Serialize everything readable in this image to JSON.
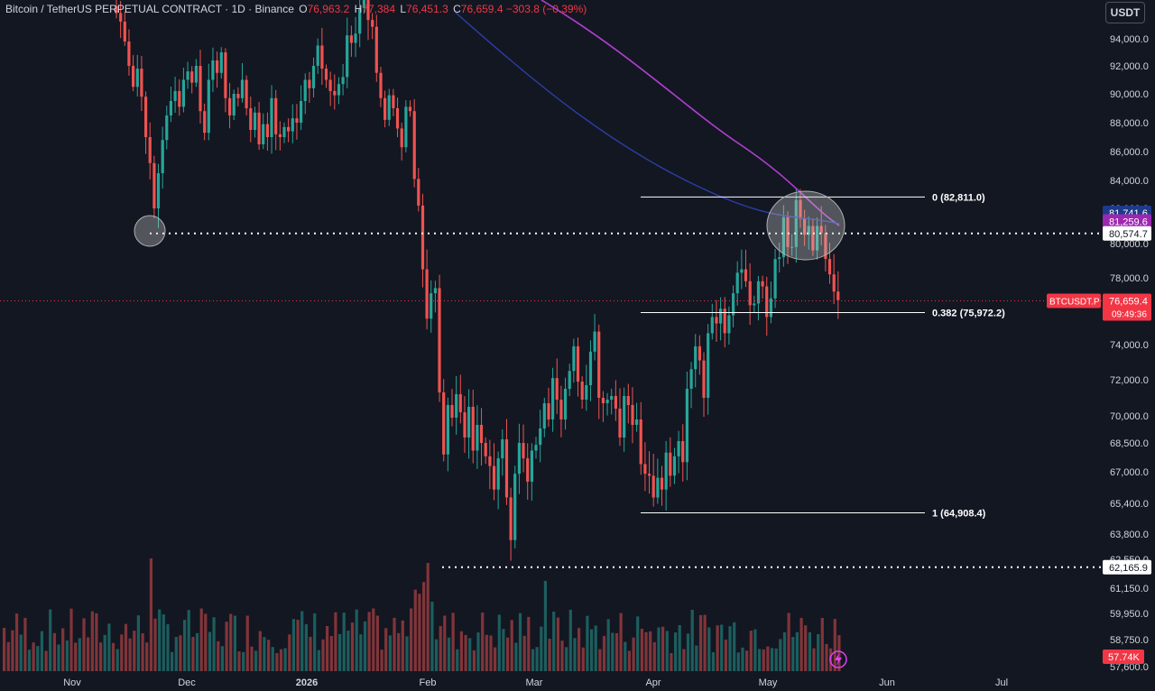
{
  "legend": {
    "symbol": "Bitcoin / TetherUS PERPETUAL CONTRACT · 1D · Binance",
    "o_label": "O",
    "o_value": "76,963.2",
    "h_label": "H",
    "h_value": "77,384",
    "l_label": "L",
    "l_value": "76,451.3",
    "c_label": "C",
    "c_value": "76,659.4",
    "change": "−303.8 (−0.39%)"
  },
  "currency_button": "USDT",
  "colors": {
    "background": "#131722",
    "up": "#26a69a",
    "down": "#ef5350",
    "ma_magenta": "#b03fd0",
    "ma_blue": "#2c3ea8",
    "last_price": "#f23645"
  },
  "chart_data": {
    "type": "candlestick",
    "x_ticks": [
      "Nov",
      "Dec",
      "2026",
      "Feb",
      "Mar",
      "Apr",
      "May",
      "Jun",
      "Jul"
    ],
    "y_ticks": [
      "94,000.0",
      "92,000.0",
      "90,000.0",
      "88,000.0",
      "86,000.0",
      "84,000.0",
      "82,000.0",
      "80,000.0",
      "78,000.0",
      "74,000.0",
      "72,000.0",
      "70,000.0",
      "68,500.0",
      "67,000.0",
      "65,400.0",
      "63,800.0",
      "62,550.0",
      "61,150.0",
      "59,950.0",
      "58,750.0",
      "57,600.0"
    ],
    "price_tags": [
      {
        "label": "81,741.6",
        "value": 81741.6,
        "color": "#1e3a8a"
      },
      {
        "label": "81,259.6",
        "value": 81259.6,
        "color": "#9c27b0"
      },
      {
        "label": "80,574.7",
        "value": 80574.7,
        "color": "#ffffff"
      },
      {
        "label": "62,165.9",
        "value": 62165.9,
        "color": "#ffffff"
      }
    ],
    "last_price": {
      "symbol": "BTCUSDT.P",
      "price": "76,659.4",
      "countdown": "09:49:36",
      "value": 76659.4
    },
    "volume_tag": "57.74K",
    "fib_levels": [
      {
        "label": "0 (82,811.0)",
        "value": 82811.0
      },
      {
        "label": "0.382 (75,972.2)",
        "value": 75972.2
      },
      {
        "label": "1 (64,908.4)",
        "value": 64908.4
      }
    ],
    "horizontal_lines": [
      80574.7,
      62165.9
    ],
    "closes": [
      95500,
      95000,
      93800,
      92000,
      90500,
      91800,
      89800,
      87000,
      85200,
      82000,
      84500,
      86800,
      88500,
      89500,
      90200,
      89100,
      91000,
      91600,
      90800,
      92000,
      88800,
      87300,
      91000,
      92400,
      91500,
      93000,
      89700,
      88500,
      90000,
      89700,
      91000,
      89000,
      87500,
      88700,
      86500,
      87900,
      87000,
      89700,
      87200,
      87000,
      87700,
      87400,
      88300,
      88000,
      89500,
      91000,
      90400,
      92000,
      93500,
      91800,
      91000,
      90200,
      89900,
      90700,
      91200,
      94200,
      93700,
      94300,
      95800,
      96900,
      95100,
      94700,
      91500,
      89700,
      88200,
      89900,
      89000,
      87600,
      86300,
      89100,
      88800,
      84100,
      82200,
      78500,
      75600,
      77100,
      77400,
      71300,
      67900,
      70600,
      69900,
      71200,
      70200,
      68800,
      70500,
      68100,
      69500,
      68500,
      67800,
      67300,
      66100,
      67700,
      68700,
      65700,
      63500,
      66900,
      68500,
      67700,
      66500,
      68100,
      68400,
      69300,
      70700,
      69800,
      72100,
      70900,
      69800,
      71500,
      72500,
      73900,
      71900,
      70900,
      71700,
      73600,
      74800,
      71000,
      70700,
      70900,
      71100,
      70400,
      68800,
      71100,
      70600,
      69500,
      69800,
      67400,
      66900,
      66800,
      65700,
      66700,
      66100,
      68000,
      66800,
      67800,
      68600,
      67500,
      71500,
      72600,
      73900,
      73100,
      71000,
      74700,
      75700,
      75300,
      76200,
      74700,
      75800,
      77100,
      78300,
      78500,
      77800,
      76400,
      76500,
      77800,
      77500,
      75700,
      76800,
      79100,
      79200,
      81500,
      79800,
      79800,
      82600,
      81400,
      80500,
      81000,
      79600,
      81000,
      80600,
      79100,
      78200,
      77200,
      76700
    ],
    "fib_x_range_candle_index": [
      142,
      186
    ]
  }
}
